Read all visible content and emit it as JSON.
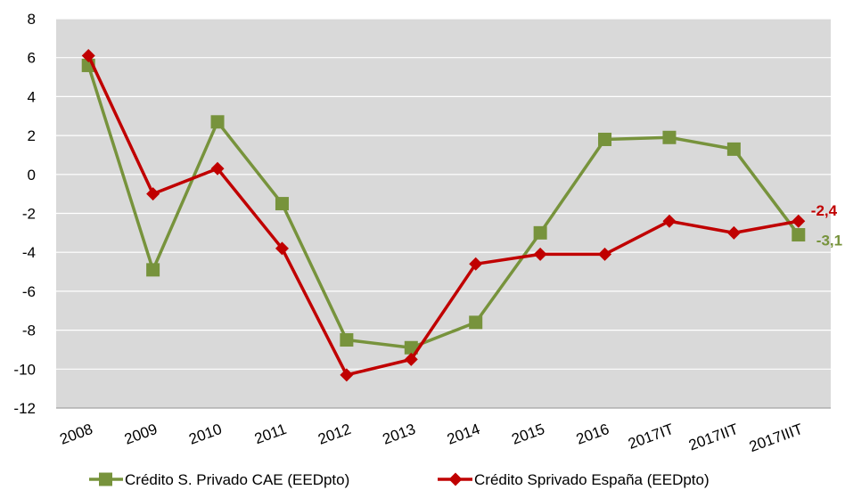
{
  "colors": {
    "plot_background": "#d9d9d9",
    "gridline": "#ffffff",
    "series_cae": "#77933c",
    "series_espana": "#c00000"
  },
  "chart_data": {
    "type": "line",
    "title": "",
    "xlabel": "",
    "ylabel": "",
    "ylim": [
      -12,
      8
    ],
    "yticks": [
      "8",
      "6",
      "4",
      "2",
      "0",
      "-2",
      "-4",
      "-6",
      "-8",
      "-10",
      "-12"
    ],
    "ytick_values": [
      8,
      6,
      4,
      2,
      0,
      -2,
      -4,
      -6,
      -8,
      -10,
      -12
    ],
    "categories": [
      "2008",
      "2009",
      "2010",
      "2011",
      "2012",
      "2013",
      "2014",
      "2015",
      "2016",
      "2017IT",
      "2017IIT",
      "2017IIIT"
    ],
    "grid": true,
    "legend_position": "bottom",
    "series": [
      {
        "name": "Crédito S. Privado CAE (EEDpto)",
        "marker": "square",
        "color": "#77933c",
        "values": [
          5.6,
          -4.9,
          2.7,
          -1.5,
          -8.5,
          -8.9,
          -7.6,
          -3.0,
          1.8,
          1.9,
          1.3,
          -3.1
        ],
        "end_label": "-3,1"
      },
      {
        "name": "Crédito Sprivado España (EEDpto)",
        "marker": "diamond",
        "color": "#c00000",
        "values": [
          6.1,
          -1.0,
          0.3,
          -3.8,
          -10.3,
          -9.5,
          -4.6,
          -4.1,
          -4.1,
          -2.4,
          -3.0,
          -2.4
        ],
        "end_label": "-2,4"
      }
    ]
  }
}
